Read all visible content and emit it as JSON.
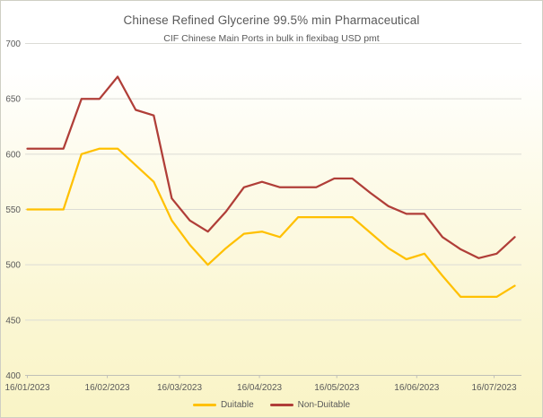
{
  "chart_data": {
    "type": "line",
    "title": "Chinese Refined Glycerine 99.5% min Pharmaceutical",
    "subtitle": "CIF Chinese Main Ports in bulk in flexibag USD pmt",
    "x": [
      "16/01/2023",
      "23/01/2023",
      "30/01/2023",
      "06/02/2023",
      "13/02/2023",
      "20/02/2023",
      "27/02/2023",
      "06/03/2023",
      "13/03/2023",
      "20/03/2023",
      "27/03/2023",
      "03/04/2023",
      "10/04/2023",
      "17/04/2023",
      "24/04/2023",
      "01/05/2023",
      "08/05/2023",
      "15/05/2023",
      "22/05/2023",
      "29/05/2023",
      "05/06/2023",
      "12/06/2023",
      "19/06/2023",
      "26/06/2023",
      "03/07/2023",
      "10/07/2023",
      "17/07/2023",
      "24/07/2023"
    ],
    "series": [
      {
        "name": "Duitable",
        "color": "#FFC000",
        "values": [
          550,
          550,
          550,
          600,
          605,
          605,
          590,
          575,
          540,
          518,
          500,
          515,
          528,
          530,
          525,
          543,
          543,
          543,
          543,
          529,
          515,
          505,
          510,
          490,
          471,
          471,
          471,
          481
        ]
      },
      {
        "name": "Non-Duitable",
        "color": "#B03E38",
        "values": [
          605,
          605,
          605,
          650,
          650,
          670,
          640,
          635,
          560,
          540,
          530,
          548,
          570,
          575,
          570,
          570,
          570,
          578,
          578,
          565,
          553,
          546,
          546,
          525,
          514,
          506,
          510,
          525
        ]
      }
    ],
    "y_axis": {
      "min": 400,
      "max": 700,
      "ticks": [
        700,
        650,
        600,
        550,
        500,
        450,
        400
      ]
    },
    "x_axis": {
      "ticks": [
        "16/01/2023",
        "16/02/2023",
        "16/03/2023",
        "16/04/2023",
        "16/05/2023",
        "16/06/2023",
        "16/07/2023"
      ]
    },
    "legend": {
      "position": "bottom",
      "items": [
        "Duitable",
        "Non-Duitable"
      ]
    },
    "grid": true,
    "ylim": [
      400,
      700
    ],
    "colors": {
      "text": "#595959",
      "gridline": "#dcdcd6",
      "axis": "#c0c0b8",
      "background_top": "#ffffff",
      "background_bottom": "#f9f4c6"
    }
  }
}
